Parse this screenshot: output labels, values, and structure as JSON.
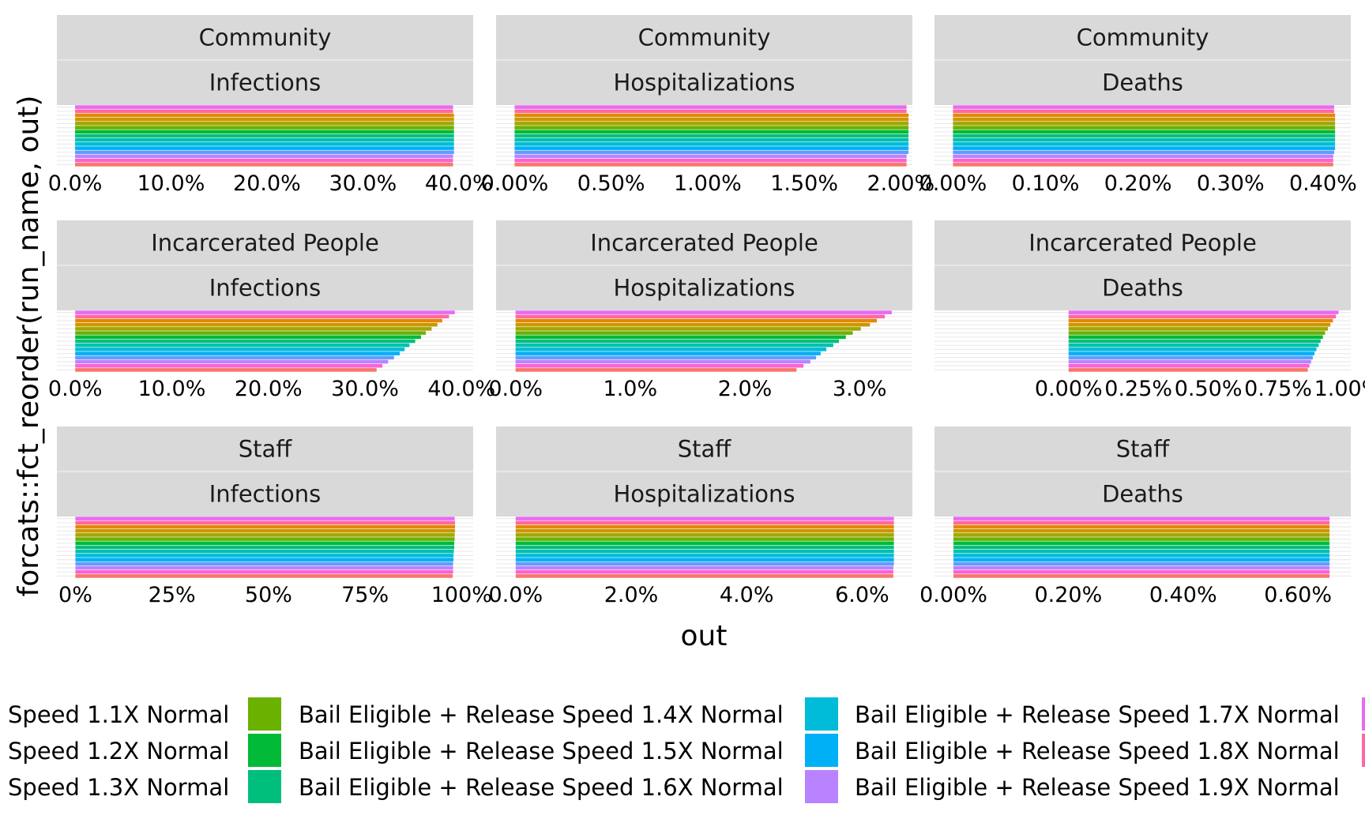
{
  "chart_data": {
    "type": "bar",
    "orientation": "horizontal",
    "xlabel": "out",
    "ylabel": "forcats::fct_reorder(run_name, out)",
    "grid": true,
    "legend_placement": "bottom",
    "series_colors": [
      "#F8766D",
      "#E58700",
      "#C99800",
      "#A3A500",
      "#6BB100",
      "#00BA38",
      "#00BF7D",
      "#00C0AF",
      "#00BCD8",
      "#00B0F6",
      "#619CFF",
      "#B983FF",
      "#E76BF3",
      "#FD61D1",
      "#FF67A4"
    ],
    "legend": {
      "columns": [
        [
          "Speed 1.1X Normal",
          "Speed 1.2X Normal",
          "Speed 1.3X Normal"
        ],
        [
          "Bail Eligible + Release Speed 1.4X Normal",
          "Bail Eligible + Release Speed 1.5X Normal",
          "Bail Eligible + Release Speed 1.6X Normal"
        ],
        [
          "Bail Eligible + Release Speed 1.7X Normal",
          "Bail Eligible + Release Speed 1.8X Normal",
          "Bail Eligible + Release Speed 1.9X Normal"
        ]
      ],
      "column_colors": [
        [
          null,
          null,
          null
        ],
        [
          "#6BB100",
          "#00BA38",
          "#00BF7D"
        ],
        [
          "#00BCD8",
          "#00B0F6",
          "#B983FF"
        ]
      ],
      "partial_column_colors": [
        "#E76BF3",
        "#FF67A4"
      ]
    },
    "panels": [
      {
        "strip_top": "Community",
        "strip_bottom": "Infections",
        "xlim": [
          -0.019,
          0.415
        ],
        "ticks": [
          0,
          0.1,
          0.2,
          0.3,
          0.4
        ],
        "tick_labels": [
          "0.0%",
          "10.0%",
          "20.0%",
          "30.0%",
          "40.0%"
        ],
        "values": [
          0.394,
          0.394,
          0.395,
          0.395,
          0.395,
          0.395,
          0.395,
          0.395,
          0.395,
          0.395,
          0.395,
          0.395,
          0.394,
          0.394,
          0.394
        ],
        "colors": [
          "#E76BF3",
          "#FF67A4",
          "#E58700",
          "#C99800",
          "#A3A500",
          "#6BB100",
          "#00BA38",
          "#00BF7D",
          "#00C0AF",
          "#00BCD8",
          "#00B0F6",
          "#619CFF",
          "#B983FF",
          "#FD61D1",
          "#F8766D"
        ]
      },
      {
        "strip_top": "Community",
        "strip_bottom": "Hospitalizations",
        "xlim": [
          -0.00096,
          0.0206
        ],
        "ticks": [
          0,
          0.005,
          0.01,
          0.015,
          0.02
        ],
        "tick_labels": [
          "0.00%",
          "0.50%",
          "1.00%",
          "1.50%",
          "2.00%"
        ],
        "values": [
          0.0203,
          0.0203,
          0.0204,
          0.0204,
          0.0204,
          0.0204,
          0.0204,
          0.0204,
          0.0204,
          0.0204,
          0.0204,
          0.0204,
          0.0203,
          0.0203,
          0.0203
        ],
        "colors": [
          "#E76BF3",
          "#FF67A4",
          "#E58700",
          "#C99800",
          "#A3A500",
          "#6BB100",
          "#00BA38",
          "#00BF7D",
          "#00C0AF",
          "#00BCD8",
          "#00B0F6",
          "#619CFF",
          "#B983FF",
          "#FD61D1",
          "#F8766D"
        ]
      },
      {
        "strip_top": "Community",
        "strip_bottom": "Deaths",
        "xlim": [
          -0.0002,
          0.0043
        ],
        "ticks": [
          0,
          0.001,
          0.002,
          0.003,
          0.004
        ],
        "tick_labels": [
          "0.00%",
          "0.10%",
          "0.20%",
          "0.30%",
          "0.40%"
        ],
        "values": [
          0.00412,
          0.00412,
          0.00413,
          0.00413,
          0.00413,
          0.00413,
          0.00413,
          0.00413,
          0.00413,
          0.00413,
          0.00413,
          0.00412,
          0.00411,
          0.00411,
          0.00411
        ],
        "colors": [
          "#E76BF3",
          "#FF67A4",
          "#E58700",
          "#C99800",
          "#A3A500",
          "#6BB100",
          "#00BA38",
          "#00BF7D",
          "#00C0AF",
          "#00BCD8",
          "#00B0F6",
          "#619CFF",
          "#B983FF",
          "#FD61D1",
          "#F8766D"
        ]
      },
      {
        "strip_top": "Incarcerated People",
        "strip_bottom": "Infections",
        "xlim": [
          -0.019,
          0.412
        ],
        "ticks": [
          0,
          0.1,
          0.2,
          0.3,
          0.4
        ],
        "tick_labels": [
          "0.0%",
          "10.0%",
          "20.0%",
          "30.0%",
          "40.0%"
        ],
        "values": [
          0.393,
          0.387,
          0.38,
          0.375,
          0.369,
          0.363,
          0.358,
          0.352,
          0.346,
          0.341,
          0.336,
          0.33,
          0.324,
          0.318,
          0.312
        ],
        "colors": [
          "#E76BF3",
          "#FF67A4",
          "#E58700",
          "#C99800",
          "#A3A500",
          "#6BB100",
          "#00BA38",
          "#00BF7D",
          "#00C0AF",
          "#00BCD8",
          "#00B0F6",
          "#619CFF",
          "#B983FF",
          "#FD61D1",
          "#F8766D"
        ]
      },
      {
        "strip_top": "Incarcerated People",
        "strip_bottom": "Hospitalizations",
        "xlim": [
          -0.0017,
          0.0346
        ],
        "ticks": [
          0,
          0.01,
          0.02,
          0.03
        ],
        "tick_labels": [
          "0.0%",
          "1.0%",
          "2.0%",
          "3.0%"
        ],
        "values": [
          0.0328,
          0.0322,
          0.0315,
          0.0309,
          0.0301,
          0.0294,
          0.0288,
          0.0282,
          0.0277,
          0.0271,
          0.0266,
          0.0262,
          0.0257,
          0.0251,
          0.0245
        ],
        "colors": [
          "#E76BF3",
          "#FF67A4",
          "#E58700",
          "#C99800",
          "#A3A500",
          "#6BB100",
          "#00BA38",
          "#00BF7D",
          "#00C0AF",
          "#00BCD8",
          "#00B0F6",
          "#619CFF",
          "#B983FF",
          "#FD61D1",
          "#F8766D"
        ]
      },
      {
        "strip_top": "Incarcerated People",
        "strip_bottom": "Deaths",
        "xlim": [
          -0.0048,
          0.0101
        ],
        "ticks": [
          0,
          0.0025,
          0.005,
          0.0075,
          0.01
        ],
        "tick_labels": [
          "0.00%",
          "0.25%",
          "0.50%",
          "0.75%",
          "1.00%"
        ],
        "values": [
          0.00966,
          0.00957,
          0.00946,
          0.00937,
          0.00928,
          0.00918,
          0.0091,
          0.00902,
          0.00895,
          0.00887,
          0.0088,
          0.00874,
          0.00868,
          0.00862,
          0.00856
        ],
        "colors": [
          "#E76BF3",
          "#FF67A4",
          "#E58700",
          "#C99800",
          "#A3A500",
          "#6BB100",
          "#00BA38",
          "#00BF7D",
          "#00C0AF",
          "#00BCD8",
          "#00B0F6",
          "#619CFF",
          "#B983FF",
          "#FD61D1",
          "#F8766D"
        ]
      },
      {
        "strip_top": "Staff",
        "strip_bottom": "Infections",
        "xlim": [
          -0.048,
          1.03
        ],
        "ticks": [
          0,
          0.25,
          0.5,
          0.75,
          1.0
        ],
        "tick_labels": [
          "0%",
          "25%",
          "50%",
          "75%",
          "100%"
        ],
        "values": [
          0.982,
          0.983,
          0.983,
          0.983,
          0.982,
          0.982,
          0.981,
          0.981,
          0.98,
          0.979,
          0.979,
          0.978,
          0.978,
          0.978,
          0.977
        ],
        "colors": [
          "#E76BF3",
          "#FF67A4",
          "#E58700",
          "#C99800",
          "#A3A500",
          "#6BB100",
          "#00BA38",
          "#00BF7D",
          "#00C0AF",
          "#00BCD8",
          "#00B0F6",
          "#619CFF",
          "#B983FF",
          "#FD61D1",
          "#F8766D"
        ]
      },
      {
        "strip_top": "Staff",
        "strip_bottom": "Hospitalizations",
        "xlim": [
          -0.0034,
          0.0687
        ],
        "ticks": [
          0,
          0.02,
          0.04,
          0.06
        ],
        "tick_labels": [
          "0.0%",
          "2.0%",
          "4.0%",
          "6.0%"
        ],
        "values": [
          0.0655,
          0.0655,
          0.0655,
          0.0655,
          0.0655,
          0.0655,
          0.0655,
          0.0655,
          0.0655,
          0.0655,
          0.0655,
          0.0655,
          0.0654,
          0.0654,
          0.0654
        ],
        "colors": [
          "#E76BF3",
          "#FF67A4",
          "#E58700",
          "#C99800",
          "#A3A500",
          "#6BB100",
          "#00BA38",
          "#00BF7D",
          "#00C0AF",
          "#00BCD8",
          "#00B0F6",
          "#619CFF",
          "#B983FF",
          "#FD61D1",
          "#F8766D"
        ]
      },
      {
        "strip_top": "Staff",
        "strip_bottom": "Deaths",
        "xlim": [
          -0.00033,
          0.00692
        ],
        "ticks": [
          0,
          0.002,
          0.004,
          0.006
        ],
        "tick_labels": [
          "0.00%",
          "0.20%",
          "0.40%",
          "0.60%"
        ],
        "values": [
          0.00655,
          0.00655,
          0.00655,
          0.00655,
          0.00655,
          0.00655,
          0.00655,
          0.00655,
          0.00655,
          0.00655,
          0.00655,
          0.00655,
          0.00655,
          0.00655,
          0.00655
        ],
        "colors": [
          "#E76BF3",
          "#FF67A4",
          "#E58700",
          "#C99800",
          "#A3A500",
          "#6BB100",
          "#00BA38",
          "#00BF7D",
          "#00C0AF",
          "#00BCD8",
          "#00B0F6",
          "#619CFF",
          "#B983FF",
          "#FD61D1",
          "#F8766D"
        ]
      }
    ]
  }
}
